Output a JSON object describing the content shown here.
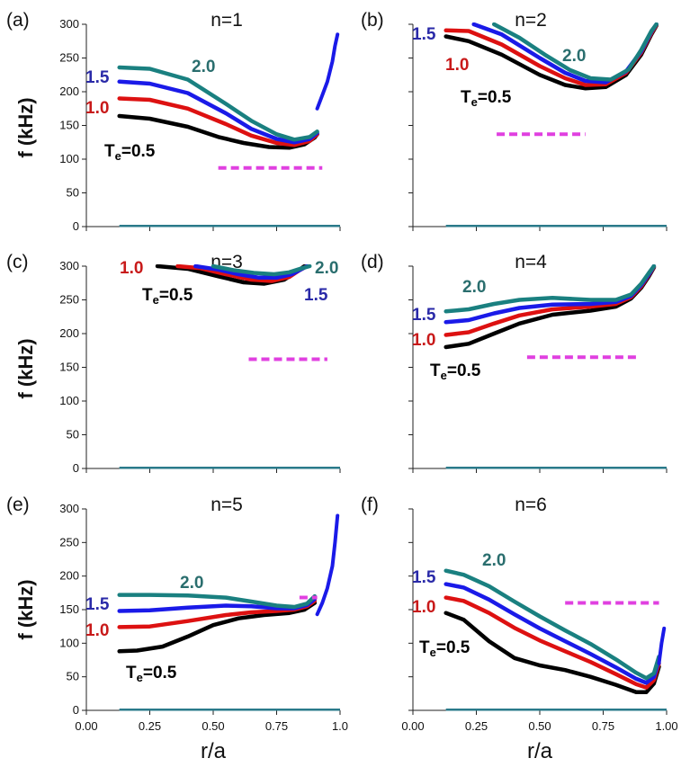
{
  "colors": {
    "T0.5": "#000000",
    "T1.0": "#dd1111",
    "T1.5": "#1a1ae8",
    "T2.0": "#1a8080",
    "threshold": "#e040e0",
    "baseline": "#2a7a8a",
    "label1.0": "#c81a1a",
    "label1.5": "#2a2aa8",
    "label2.0": "#2a6e6e"
  },
  "axis_labels": {
    "y": "f (kHz)",
    "x": "r/a"
  },
  "te_label": {
    "prefix": "T",
    "sub": "e",
    "suffix": "=0.5"
  },
  "chart_data": [
    {
      "type": "line",
      "panel": "(a)",
      "title": "n=1",
      "xlim": [
        0,
        1
      ],
      "ylim": [
        0,
        300
      ],
      "yticks": [
        "0",
        "50",
        "100",
        "150",
        "200",
        "250",
        "300"
      ],
      "xticks": [],
      "series": [
        {
          "name": "Te=0.5",
          "label": "T_e=0.5",
          "x": [
            0.13,
            0.25,
            0.4,
            0.52,
            0.62,
            0.72,
            0.8,
            0.86,
            0.9,
            0.91
          ],
          "y": [
            164,
            160,
            148,
            133,
            124,
            118,
            117,
            122,
            132,
            137
          ]
        },
        {
          "name": "Te=1.0",
          "label": "1.0",
          "x": [
            0.13,
            0.25,
            0.4,
            0.55,
            0.65,
            0.75,
            0.82,
            0.88,
            0.91
          ],
          "y": [
            190,
            188,
            175,
            152,
            135,
            124,
            121,
            127,
            137
          ]
        },
        {
          "name": "Te=1.5",
          "label": "1.5",
          "x": [
            0.13,
            0.25,
            0.4,
            0.55,
            0.65,
            0.75,
            0.82,
            0.88,
            0.91
          ],
          "y": [
            215,
            212,
            198,
            168,
            145,
            130,
            125,
            130,
            139
          ]
        },
        {
          "name": "Te=2.0",
          "label": "2.0",
          "x": [
            0.13,
            0.25,
            0.4,
            0.55,
            0.65,
            0.75,
            0.82,
            0.88,
            0.91
          ],
          "y": [
            236,
            234,
            218,
            182,
            157,
            137,
            129,
            133,
            141
          ]
        },
        {
          "name": "edge",
          "label": "",
          "x": [
            0.91,
            0.93,
            0.95,
            0.97,
            0.98,
            0.99
          ],
          "y": [
            175,
            195,
            215,
            245,
            268,
            285
          ]
        }
      ],
      "threshold": {
        "x": [
          0.52,
          0.93
        ],
        "y": 87
      }
    },
    {
      "type": "line",
      "panel": "(b)",
      "title": "n=2",
      "xlim": [
        0,
        1
      ],
      "ylim": [
        0,
        300
      ],
      "yticks": [],
      "xticks": [],
      "series": [
        {
          "name": "Te=0.5",
          "label": "T_e=0.5",
          "x": [
            0.13,
            0.22,
            0.35,
            0.5,
            0.6,
            0.68,
            0.76,
            0.84,
            0.9,
            0.94,
            0.96
          ],
          "y": [
            282,
            275,
            255,
            225,
            210,
            205,
            207,
            225,
            255,
            285,
            298
          ]
        },
        {
          "name": "Te=1.0",
          "label": "1.0",
          "x": [
            0.13,
            0.22,
            0.35,
            0.5,
            0.6,
            0.68,
            0.76,
            0.84,
            0.9,
            0.94,
            0.96
          ],
          "y": [
            291,
            290,
            270,
            238,
            220,
            210,
            211,
            228,
            258,
            287,
            299
          ]
        },
        {
          "name": "Te=1.5",
          "label": "1.5",
          "x": [
            0.24,
            0.35,
            0.5,
            0.6,
            0.68,
            0.76,
            0.84,
            0.9,
            0.94,
            0.96
          ],
          "y": [
            300,
            285,
            250,
            228,
            216,
            214,
            230,
            260,
            289,
            300
          ]
        },
        {
          "name": "Te=2.0",
          "label": "2.0",
          "x": [
            0.32,
            0.42,
            0.52,
            0.62,
            0.7,
            0.78,
            0.85,
            0.9,
            0.94,
            0.96
          ],
          "y": [
            300,
            280,
            255,
            232,
            220,
            218,
            233,
            262,
            290,
            300
          ]
        }
      ],
      "threshold": {
        "x": [
          0.33,
          0.68
        ],
        "y": 137
      }
    },
    {
      "type": "line",
      "panel": "(c)",
      "title": "n=3",
      "xlim": [
        0,
        1
      ],
      "ylim": [
        0,
        300
      ],
      "yticks": [
        "0",
        "50",
        "100",
        "150",
        "200",
        "250",
        "300"
      ],
      "xticks": [],
      "series": [
        {
          "name": "Te=0.5",
          "label": "T_e=0.5",
          "x": [
            0.28,
            0.4,
            0.52,
            0.62,
            0.7,
            0.78,
            0.83,
            0.86
          ],
          "y": [
            300,
            296,
            285,
            276,
            274,
            280,
            292,
            300
          ]
        },
        {
          "name": "Te=1.0",
          "label": "1.0",
          "x": [
            0.36,
            0.45,
            0.55,
            0.65,
            0.73,
            0.8,
            0.84,
            0.87
          ],
          "y": [
            300,
            297,
            288,
            280,
            278,
            284,
            294,
            300
          ]
        },
        {
          "name": "Te=1.5",
          "label": "1.5",
          "x": [
            0.43,
            0.52,
            0.6,
            0.68,
            0.75,
            0.81,
            0.85,
            0.87
          ],
          "y": [
            300,
            295,
            288,
            283,
            283,
            288,
            296,
            300
          ]
        },
        {
          "name": "Te=2.0",
          "label": "2.0",
          "x": [
            0.5,
            0.58,
            0.66,
            0.74,
            0.8,
            0.85,
            0.88
          ],
          "y": [
            300,
            294,
            290,
            288,
            291,
            297,
            300
          ]
        }
      ],
      "threshold": {
        "x": [
          0.64,
          0.95
        ],
        "y": 162
      }
    },
    {
      "type": "line",
      "panel": "(d)",
      "title": "n=4",
      "xlim": [
        0,
        1
      ],
      "ylim": [
        0,
        300
      ],
      "yticks": [],
      "xticks": [],
      "series": [
        {
          "name": "Te=0.5",
          "label": "T_e=0.5",
          "x": [
            0.13,
            0.22,
            0.32,
            0.42,
            0.55,
            0.7,
            0.8,
            0.86,
            0.9,
            0.93,
            0.95
          ],
          "y": [
            180,
            185,
            200,
            215,
            228,
            234,
            240,
            252,
            268,
            285,
            298
          ]
        },
        {
          "name": "Te=1.0",
          "label": "1.0",
          "x": [
            0.13,
            0.22,
            0.32,
            0.42,
            0.55,
            0.7,
            0.8,
            0.86,
            0.9,
            0.93,
            0.95
          ],
          "y": [
            198,
            202,
            215,
            227,
            236,
            240,
            244,
            254,
            270,
            287,
            299
          ]
        },
        {
          "name": "Te=1.5",
          "label": "1.5",
          "x": [
            0.13,
            0.22,
            0.32,
            0.42,
            0.55,
            0.7,
            0.8,
            0.86,
            0.9,
            0.93,
            0.95
          ],
          "y": [
            217,
            220,
            230,
            238,
            243,
            244,
            247,
            256,
            272,
            288,
            300
          ]
        },
        {
          "name": "Te=2.0",
          "label": "2.0",
          "x": [
            0.13,
            0.22,
            0.32,
            0.42,
            0.55,
            0.7,
            0.8,
            0.86,
            0.9,
            0.93,
            0.95
          ],
          "y": [
            233,
            236,
            244,
            250,
            253,
            250,
            250,
            258,
            274,
            290,
            300
          ]
        }
      ],
      "threshold": {
        "x": [
          0.45,
          0.88
        ],
        "y": 165
      }
    },
    {
      "type": "line",
      "panel": "(e)",
      "title": "n=5",
      "xlim": [
        0,
        1
      ],
      "ylim": [
        0,
        300
      ],
      "yticks": [
        "0",
        "50",
        "100",
        "150",
        "200",
        "250",
        "300"
      ],
      "xticks": [
        "0.00",
        "0.25",
        "0.50",
        "0.75",
        "1.0"
      ],
      "series": [
        {
          "name": "Te=0.5",
          "label": "T_e=0.5",
          "x": [
            0.13,
            0.2,
            0.3,
            0.4,
            0.5,
            0.6,
            0.7,
            0.8,
            0.86,
            0.9
          ],
          "y": [
            88,
            89,
            95,
            110,
            127,
            137,
            142,
            145,
            150,
            160
          ]
        },
        {
          "name": "Te=1.0",
          "label": "1.0",
          "x": [
            0.13,
            0.25,
            0.4,
            0.55,
            0.65,
            0.75,
            0.82,
            0.87,
            0.9
          ],
          "y": [
            124,
            125,
            133,
            142,
            146,
            148,
            150,
            155,
            163
          ]
        },
        {
          "name": "Te=1.5",
          "label": "1.5",
          "x": [
            0.13,
            0.25,
            0.4,
            0.55,
            0.65,
            0.75,
            0.82,
            0.87,
            0.9
          ],
          "y": [
            148,
            149,
            153,
            156,
            155,
            152,
            152,
            157,
            166
          ]
        },
        {
          "name": "Te=2.0",
          "label": "2.0",
          "x": [
            0.13,
            0.25,
            0.4,
            0.55,
            0.65,
            0.75,
            0.82,
            0.87,
            0.9
          ],
          "y": [
            172,
            172,
            171,
            168,
            162,
            156,
            154,
            159,
            170
          ]
        },
        {
          "name": "edge",
          "label": "",
          "x": [
            0.91,
            0.93,
            0.95,
            0.97,
            0.98,
            0.99
          ],
          "y": [
            143,
            160,
            182,
            215,
            250,
            290
          ]
        }
      ],
      "threshold": {
        "x": [
          0.84,
          0.91
        ],
        "y": 168
      }
    },
    {
      "type": "line",
      "panel": "(f)",
      "title": "n=6",
      "xlim": [
        0,
        1
      ],
      "ylim": [
        0,
        300
      ],
      "yticks": [],
      "xticks": [
        "0.00",
        "0.25",
        "0.50",
        "0.75",
        "1.00"
      ],
      "series": [
        {
          "name": "Te=0.5",
          "label": "T_e=0.5",
          "x": [
            0.13,
            0.2,
            0.3,
            0.4,
            0.5,
            0.6,
            0.7,
            0.8,
            0.88,
            0.92,
            0.95,
            0.97
          ],
          "y": [
            145,
            135,
            103,
            78,
            67,
            60,
            50,
            38,
            27,
            27,
            40,
            65
          ]
        },
        {
          "name": "Te=1.0",
          "label": "1.0",
          "x": [
            0.13,
            0.2,
            0.3,
            0.4,
            0.5,
            0.6,
            0.7,
            0.8,
            0.88,
            0.92,
            0.95,
            0.97
          ],
          "y": [
            168,
            163,
            145,
            123,
            104,
            88,
            72,
            54,
            39,
            34,
            45,
            70
          ]
        },
        {
          "name": "Te=1.5",
          "label": "1.5",
          "x": [
            0.13,
            0.2,
            0.3,
            0.4,
            0.5,
            0.6,
            0.7,
            0.8,
            0.88,
            0.92,
            0.95,
            0.97
          ],
          "y": [
            188,
            183,
            165,
            143,
            122,
            103,
            84,
            64,
            47,
            41,
            50,
            75
          ]
        },
        {
          "name": "Te=2.0",
          "label": "2.0",
          "x": [
            0.13,
            0.2,
            0.3,
            0.4,
            0.5,
            0.6,
            0.7,
            0.8,
            0.88,
            0.92,
            0.95,
            0.97
          ],
          "y": [
            208,
            202,
            185,
            162,
            140,
            119,
            99,
            76,
            56,
            48,
            55,
            80
          ]
        },
        {
          "name": "edge",
          "label": "",
          "x": [
            0.97,
            0.98,
            0.99
          ],
          "y": [
            70,
            100,
            122
          ]
        }
      ],
      "threshold": {
        "x": [
          0.6,
          0.97
        ],
        "y": 160
      }
    }
  ]
}
